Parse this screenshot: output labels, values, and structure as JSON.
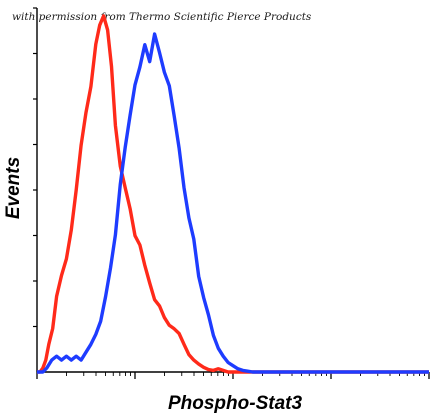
{
  "credit": "with permission from Thermo Scientific Pierce Products",
  "chart_data": {
    "type": "line",
    "xlabel": "Phospho-Stat3",
    "ylabel": "Events",
    "x_scale": "log",
    "x_range_decades": [
      0,
      4
    ],
    "y_ticks_count": 8,
    "grid": false,
    "legend": "none",
    "series": [
      {
        "color": "#ff2a1a",
        "x": [
          0.0,
          0.03,
          0.06,
          0.09,
          0.12,
          0.16,
          0.2,
          0.25,
          0.3,
          0.35,
          0.4,
          0.45,
          0.5,
          0.55,
          0.6,
          0.64,
          0.68,
          0.72,
          0.76,
          0.8,
          0.85,
          0.9,
          0.95,
          1.0,
          1.05,
          1.1,
          1.15,
          1.2,
          1.25,
          1.3,
          1.35,
          1.4,
          1.45,
          1.5,
          1.55,
          1.6,
          1.65,
          1.7,
          1.75,
          1.8,
          1.85,
          1.9,
          1.95,
          2.0,
          4.0
        ],
        "y": [
          0,
          0,
          5,
          15,
          35,
          55,
          95,
          125,
          145,
          180,
          230,
          290,
          325,
          360,
          415,
          440,
          450,
          430,
          385,
          315,
          260,
          235,
          205,
          175,
          160,
          135,
          115,
          95,
          80,
          65,
          62,
          55,
          45,
          35,
          22,
          15,
          10,
          6,
          3,
          2,
          4,
          2,
          0,
          0,
          0
        ]
      },
      {
        "color": "#1e3cff",
        "x": [
          0.0,
          0.06,
          0.1,
          0.15,
          0.2,
          0.25,
          0.3,
          0.35,
          0.4,
          0.45,
          0.5,
          0.55,
          0.6,
          0.65,
          0.7,
          0.75,
          0.8,
          0.85,
          0.9,
          0.95,
          1.0,
          1.05,
          1.1,
          1.15,
          1.2,
          1.25,
          1.3,
          1.35,
          1.4,
          1.45,
          1.5,
          1.55,
          1.6,
          1.65,
          1.7,
          1.75,
          1.8,
          1.85,
          1.9,
          1.95,
          2.0,
          2.05,
          2.1,
          2.15,
          2.2,
          4.0
        ],
        "y": [
          0,
          0,
          5,
          15,
          20,
          15,
          20,
          15,
          20,
          15,
          25,
          35,
          50,
          65,
          95,
          130,
          175,
          240,
          280,
          325,
          365,
          385,
          415,
          395,
          425,
          405,
          380,
          365,
          320,
          285,
          230,
          195,
          170,
          120,
          95,
          70,
          45,
          30,
          20,
          12,
          8,
          4,
          2,
          1,
          0,
          0
        ]
      }
    ]
  }
}
